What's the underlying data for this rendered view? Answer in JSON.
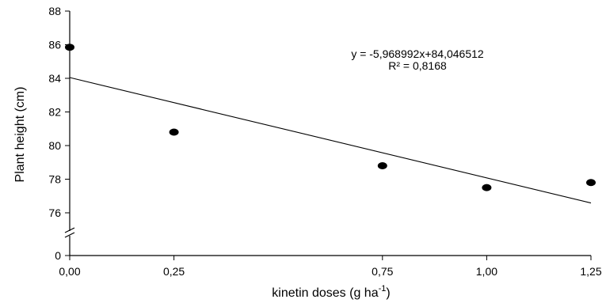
{
  "chart_data": {
    "type": "scatter",
    "title": "",
    "xlabel": "kinetin doses (g ha",
    "xlabel_sup": "-1",
    "xlabel_end": ")",
    "ylabel": "Plant height (cm)",
    "x": [
      0.0,
      0.25,
      0.75,
      1.0,
      1.25
    ],
    "y": [
      85.85,
      80.8,
      78.8,
      77.5,
      77.8
    ],
    "x_ticks": [
      0.0,
      0.25,
      0.75,
      1.0,
      1.25
    ],
    "x_tick_labels": [
      "0,00",
      "0,25",
      "0,75",
      "1,00",
      "1,25"
    ],
    "y_ticks": [
      76,
      78,
      80,
      82,
      84,
      86,
      88
    ],
    "y_tick_labels": [
      "76",
      "78",
      "80",
      "82",
      "84",
      "86",
      "88"
    ],
    "y_zero_label": "0",
    "xlim": [
      0,
      1.25
    ],
    "ylim": [
      75,
      88
    ],
    "y_axis_break": true,
    "grid": false,
    "marker_color": "#000000",
    "line_color": "#000000",
    "trendline": {
      "slope": -5.968992,
      "intercept": 84.046512,
      "x_range": [
        0,
        1.25
      ],
      "equation": "y = -5,968992x+84,046512",
      "r_squared": "R² = 0,8168"
    }
  }
}
